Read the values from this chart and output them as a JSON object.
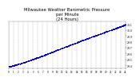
{
  "title": "Milwaukee Weather Barometric Pressure\nper Minute\n(24 Hours)",
  "title_fontsize": 3.8,
  "bg_color": "#ffffff",
  "text_color": "#000000",
  "grid_color": "#aaaaaa",
  "dot_color": "#0000cc",
  "dot_size": 0.5,
  "ylim": [
    29.35,
    30.15
  ],
  "xlim": [
    0,
    1440
  ],
  "yticks": [
    29.4,
    29.5,
    29.6,
    29.7,
    29.8,
    29.9,
    30.0,
    30.1
  ],
  "ytick_labels": [
    "29.4",
    "29.5",
    "29.6",
    "29.7",
    "29.8",
    "29.9",
    "30.0",
    "30.1"
  ],
  "xtick_interval": 60,
  "num_points": 1440,
  "pressure_start": 29.38,
  "pressure_end": 30.12
}
